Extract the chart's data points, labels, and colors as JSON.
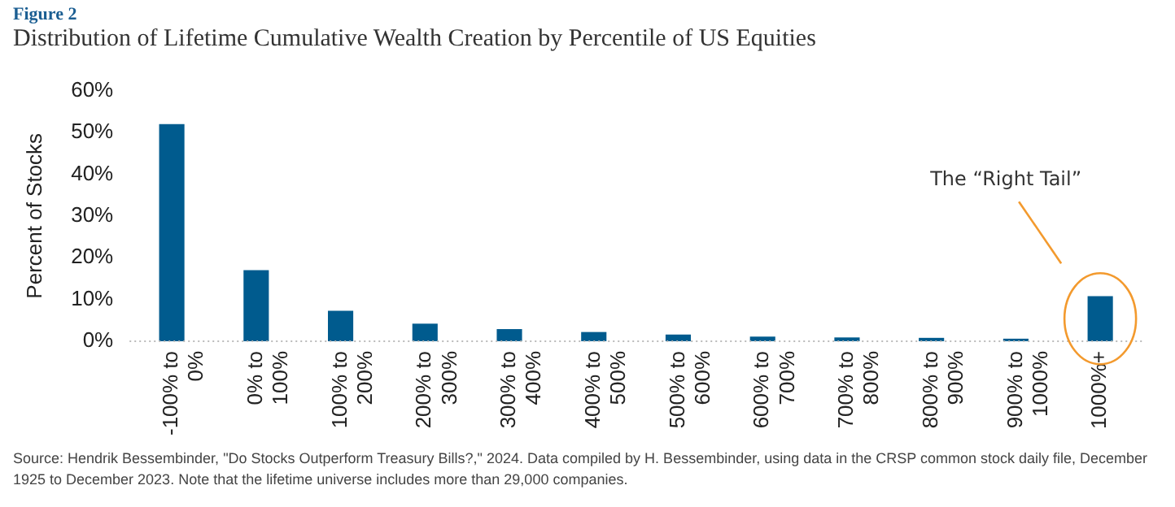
{
  "chart_data": {
    "type": "bar",
    "subtitle": "Figure 2",
    "title": "Distribution of Lifetime Cumulative Wealth Creation by Percentile of US Equities",
    "ylabel": "Percent of Stocks",
    "categories": [
      "-100% to 0%",
      "0% to 100%",
      "100% to 200%",
      "200% to 300%",
      "300% to 400%",
      "400% to 500%",
      "500% to 600%",
      "600% to 700%",
      "700% to 800%",
      "800% to 900%",
      "900% to 1000%",
      "1000%+"
    ],
    "values": [
      52,
      17,
      7.3,
      4.2,
      2.9,
      2.2,
      1.6,
      1.1,
      0.9,
      0.8,
      0.6,
      10.8
    ],
    "color": "#005b8e",
    "ylim": [
      0,
      60
    ],
    "yticks": [
      {
        "value": 0,
        "label": "0%"
      },
      {
        "value": 10,
        "label": "10%"
      },
      {
        "value": 20,
        "label": "20%"
      },
      {
        "value": 30,
        "label": "30%"
      },
      {
        "value": 40,
        "label": "40%"
      },
      {
        "value": 50,
        "label": "50%"
      },
      {
        "value": 60,
        "label": "60%"
      }
    ],
    "grid": false,
    "legend": false,
    "annotations": [
      "The “Right Tail”",
      "Source: Hendrik Bessembinder, \"Do Stocks Outperform Treasury Bills?,\" 2024. Data compiled by H. Bessembinder, using data in the CRSP common stock daily file, December 1925 to December 2023. Note that the lifetime universe includes more than 29,000 companies."
    ]
  }
}
